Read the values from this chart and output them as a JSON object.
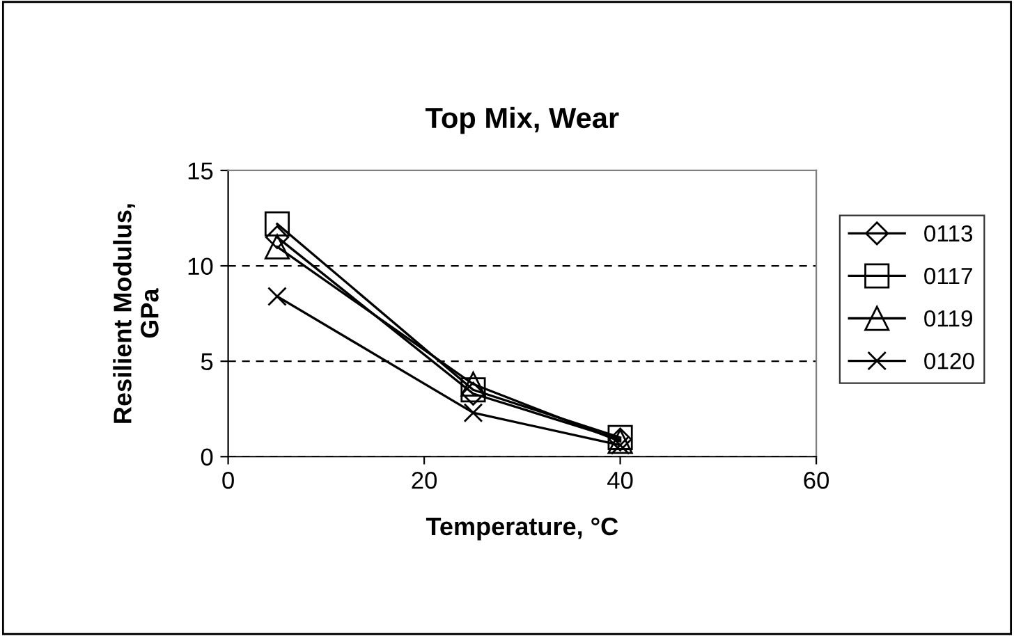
{
  "chart_data": {
    "type": "line",
    "title": "Top Mix, Wear",
    "xlabel": "Temperature, °C",
    "ylabel": "Resilient Modulus,\nGPa",
    "x": [
      5,
      25,
      40
    ],
    "xlim": [
      0,
      60
    ],
    "xticks": [
      0,
      20,
      40,
      60
    ],
    "ylim": [
      0,
      15
    ],
    "yticks": [
      0,
      5,
      10,
      15
    ],
    "grid": "y",
    "legend": "right",
    "series": [
      {
        "name": "0113",
        "color": "#000000",
        "marker": "diamond",
        "values": [
          11.5,
          3.3,
          0.9
        ]
      },
      {
        "name": "0117",
        "color": "#000000",
        "marker": "square",
        "values": [
          12.2,
          3.5,
          1.0
        ]
      },
      {
        "name": "0119",
        "color": "#000000",
        "marker": "triangle",
        "values": [
          11.0,
          3.8,
          0.8
        ]
      },
      {
        "name": "0120",
        "color": "#000000",
        "marker": "cross",
        "values": [
          8.4,
          2.3,
          0.6
        ]
      }
    ]
  }
}
